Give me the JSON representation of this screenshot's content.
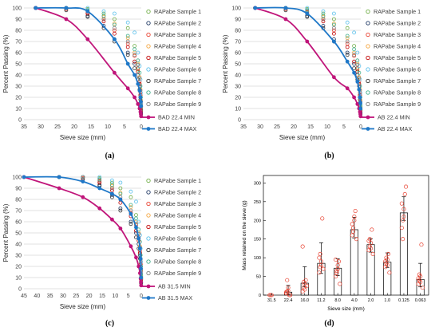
{
  "panels": [
    {
      "label": "(a)",
      "chart_data": {
        "type": "scatter",
        "xlabel": "Sieve size (mm)",
        "ylabel": "Percent Passing (%)",
        "x_ticks": [
          35,
          30,
          25,
          20,
          15,
          10,
          5,
          0
        ],
        "y_ticks": [
          0,
          10,
          20,
          30,
          40,
          50,
          60,
          70,
          80,
          90,
          100
        ],
        "xlim": [
          35,
          0
        ],
        "ylim": [
          0,
          100
        ],
        "grid": "horizontal",
        "legend_position": "right",
        "sieve_sizes": [
          31.5,
          22.4,
          16,
          11.2,
          8,
          4,
          2,
          1,
          0.5,
          0.25,
          0.125,
          0.063
        ],
        "envelope": [
          {
            "name": "BAD 22.4 MIN",
            "color": "#c0157a",
            "x": [
              31.5,
              22.4,
              16,
              8,
              4,
              2,
              1,
              0.5,
              0.25,
              0.125,
              0.063
            ],
            "y": [
              100,
              90,
              72,
              42,
              28,
              20,
              14,
              10,
              7,
              5,
              3
            ]
          },
          {
            "name": "BAD 22.4 MAX",
            "color": "#1f78c8",
            "x": [
              31.5,
              22.4,
              16,
              8,
              4,
              2,
              1,
              0.5,
              0.25,
              0.125,
              0.063
            ],
            "y": [
              100,
              100,
              97,
              72,
              50,
              40,
              32,
              26,
              20,
              16,
              12
            ]
          }
        ],
        "samples": [
          {
            "name": "RAPabe Sample 1",
            "color": "#70ad47",
            "y": [
              100,
              100,
              99,
              95,
              90,
              82,
              66,
              45,
              32,
              22,
              13,
              9
            ]
          },
          {
            "name": "RAPabe Sample 2",
            "color": "#1f3864",
            "y": [
              100,
              100,
              93,
              84,
              72,
              60,
              50,
              40,
              30,
              20,
              10,
              6
            ]
          },
          {
            "name": "RAPabe Sample 3",
            "color": "#e8402f",
            "y": [
              100,
              99,
              96,
              90,
              80,
              68,
              57,
              46,
              34,
              24,
              16,
              10
            ]
          },
          {
            "name": "RAPabe Sample 4",
            "color": "#f4a640",
            "y": [
              100,
              100,
              97,
              92,
              86,
              73,
              60,
              50,
              38,
              27,
              17,
              11
            ]
          },
          {
            "name": "RAPabe Sample 5",
            "color": "#c00000",
            "y": [
              100,
              100,
              95,
              88,
              77,
              65,
              52,
              43,
              32,
              22,
              14,
              8
            ]
          },
          {
            "name": "RAPabe Sample 6",
            "color": "#5bc0eb",
            "y": [
              100,
              100,
              100,
              97,
              95,
              87,
              78,
              60,
              48,
              36,
              24,
              14
            ]
          },
          {
            "name": "RAPabe Sample 7",
            "color": "#2f2f2f",
            "y": [
              100,
              98,
              92,
              82,
              70,
              58,
              46,
              36,
              27,
              18,
              9,
              5
            ]
          },
          {
            "name": "RAPabe Sample 8",
            "color": "#3fae8c",
            "y": [
              100,
              100,
              98,
              93,
              85,
              75,
              63,
              53,
              42,
              30,
              20,
              12
            ]
          },
          {
            "name": "RAPabe Sample 9",
            "color": "#7f7f7f",
            "y": [
              100,
              100,
              97,
              90,
              82,
              70,
              58,
              49,
              37,
              26,
              16,
              9
            ]
          }
        ]
      }
    },
    {
      "label": "(b)",
      "chart_data": {
        "type": "scatter",
        "xlabel": "Sieve size (mm)",
        "ylabel": "Percent Passing (%)",
        "x_ticks": [
          35,
          30,
          25,
          20,
          15,
          10,
          5,
          0
        ],
        "y_ticks": [
          0,
          10,
          20,
          30,
          40,
          50,
          60,
          70,
          80,
          90,
          100
        ],
        "xlim": [
          35,
          0
        ],
        "ylim": [
          0,
          100
        ],
        "grid": "horizontal",
        "legend_position": "right",
        "sieve_sizes": [
          31.5,
          22.4,
          16,
          11.2,
          8,
          4,
          2,
          1,
          0.5,
          0.25,
          0.125,
          0.063
        ],
        "envelope": [
          {
            "name": "AB 22.4 MIN",
            "color": "#c0157a",
            "x": [
              31.5,
              22.4,
              16,
              8,
              4,
              2,
              1,
              0.5,
              0.25,
              0.125,
              0.063
            ],
            "y": [
              100,
              90,
              70,
              38,
              28,
              20,
              14,
              10,
              7,
              5,
              3
            ]
          },
          {
            "name": "AB 22.4 MAX",
            "color": "#1f78c8",
            "x": [
              31.5,
              22.4,
              16,
              8,
              4,
              2,
              1,
              0.5,
              0.25,
              0.125,
              0.063
            ],
            "y": [
              100,
              100,
              95,
              70,
              52,
              42,
              34,
              27,
              20,
              15,
              10
            ]
          }
        ],
        "samples": [
          {
            "name": "RAPabe Sample 1",
            "color": "#70ad47",
            "y": [
              100,
              100,
              99,
              95,
              90,
              82,
              66,
              45,
              32,
              22,
              13,
              9
            ]
          },
          {
            "name": "RAPabe Sample 2",
            "color": "#1f3864",
            "y": [
              100,
              100,
              93,
              84,
              72,
              60,
              50,
              40,
              30,
              20,
              10,
              6
            ]
          },
          {
            "name": "RAPabe Sample 3",
            "color": "#e8402f",
            "y": [
              100,
              99,
              96,
              90,
              80,
              68,
              57,
              46,
              34,
              24,
              16,
              10
            ]
          },
          {
            "name": "RAPabe Sample 4",
            "color": "#f4a640",
            "y": [
              100,
              100,
              97,
              92,
              86,
              73,
              60,
              50,
              38,
              27,
              17,
              11
            ]
          },
          {
            "name": "RAPabe Sample 5",
            "color": "#c00000",
            "y": [
              100,
              100,
              95,
              88,
              77,
              65,
              52,
              43,
              32,
              22,
              14,
              8
            ]
          },
          {
            "name": "RAPabe Sample 6",
            "color": "#5bc0eb",
            "y": [
              100,
              100,
              100,
              97,
              95,
              87,
              78,
              60,
              48,
              36,
              24,
              14
            ]
          },
          {
            "name": "RAPabe Sample 7",
            "color": "#2f2f2f",
            "y": [
              100,
              98,
              92,
              82,
              70,
              58,
              46,
              36,
              27,
              18,
              9,
              5
            ]
          },
          {
            "name": "RAPabe Sample 8",
            "color": "#3fae8c",
            "y": [
              100,
              100,
              98,
              93,
              85,
              75,
              63,
              53,
              42,
              30,
              20,
              12
            ]
          },
          {
            "name": "RAPabe Sample 9",
            "color": "#7f7f7f",
            "y": [
              100,
              100,
              97,
              90,
              82,
              70,
              58,
              49,
              37,
              26,
              16,
              9
            ]
          }
        ]
      }
    },
    {
      "label": "(c)",
      "chart_data": {
        "type": "scatter",
        "xlabel": "Sieve size (mm)",
        "ylabel": "Percent Passing (%)",
        "x_ticks": [
          45,
          40,
          35,
          30,
          25,
          20,
          15,
          10,
          5,
          0
        ],
        "y_ticks": [
          0,
          10,
          20,
          30,
          40,
          50,
          60,
          70,
          80,
          90,
          100
        ],
        "xlim": [
          45,
          0
        ],
        "ylim": [
          0,
          100
        ],
        "grid": "horizontal",
        "legend_position": "right",
        "sieve_sizes": [
          31.5,
          22.4,
          16,
          11.2,
          8,
          4,
          2,
          1,
          0.5,
          0.25,
          0.125,
          0.063
        ],
        "envelope": [
          {
            "name": "AB 31.5 MIN",
            "color": "#c0157a",
            "x": [
              45,
              31.5,
              22.4,
              16,
              11.2,
              8,
              4,
              2,
              1,
              0.5,
              0.25,
              0.125,
              0.063
            ],
            "y": [
              100,
              90,
              82,
              72,
              62,
              54,
              38,
              28,
              20,
              14,
              9,
              6,
              3
            ]
          },
          {
            "name": "AB 31.5 MAX",
            "color": "#1f78c8",
            "x": [
              45,
              31.5,
              22.4,
              16,
              11.2,
              8,
              4,
              2,
              1,
              0.5,
              0.25,
              0.125,
              0.063
            ],
            "y": [
              100,
              100,
              96,
              90,
              85,
              80,
              67,
              55,
              45,
              36,
              27,
              18,
              10
            ]
          }
        ],
        "samples": [
          {
            "name": "RAPabe Sample 1",
            "color": "#70ad47",
            "y": [
              100,
              100,
              99,
              95,
              90,
              82,
              66,
              45,
              32,
              22,
              13,
              9
            ]
          },
          {
            "name": "RAPabe Sample 2",
            "color": "#1f3864",
            "y": [
              100,
              100,
              93,
              84,
              72,
              60,
              50,
              40,
              30,
              20,
              10,
              6
            ]
          },
          {
            "name": "RAPabe Sample 3",
            "color": "#e8402f",
            "y": [
              100,
              99,
              96,
              90,
              80,
              68,
              57,
              46,
              34,
              24,
              16,
              10
            ]
          },
          {
            "name": "RAPabe Sample 4",
            "color": "#f4a640",
            "y": [
              100,
              100,
              97,
              92,
              86,
              73,
              60,
              50,
              38,
              27,
              17,
              11
            ]
          },
          {
            "name": "RAPabe Sample 5",
            "color": "#c00000",
            "y": [
              100,
              100,
              95,
              88,
              77,
              65,
              52,
              43,
              32,
              22,
              14,
              8
            ]
          },
          {
            "name": "RAPabe Sample 6",
            "color": "#5bc0eb",
            "y": [
              100,
              100,
              100,
              97,
              95,
              87,
              78,
              60,
              48,
              36,
              24,
              14
            ]
          },
          {
            "name": "RAPabe Sample 7",
            "color": "#2f2f2f",
            "y": [
              100,
              98,
              92,
              82,
              70,
              58,
              46,
              36,
              27,
              18,
              9,
              5
            ]
          },
          {
            "name": "RAPabe Sample 8",
            "color": "#3fae8c",
            "y": [
              100,
              100,
              98,
              93,
              85,
              75,
              63,
              53,
              42,
              30,
              20,
              12
            ]
          },
          {
            "name": "RAPabe Sample 9",
            "color": "#7f7f7f",
            "y": [
              100,
              100,
              97,
              90,
              82,
              70,
              58,
              49,
              37,
              26,
              16,
              9
            ]
          }
        ]
      }
    },
    {
      "label": "(d)",
      "chart_data": {
        "type": "bar",
        "xlabel": "Sieve size (mm)",
        "ylabel": "Mass retained on the sieve (g)",
        "categories": [
          "31.5",
          "22.4",
          "16.0",
          "11.2",
          "8.0",
          "4.0",
          "2.0",
          "1.0",
          "0.125",
          "0.063"
        ],
        "y_ticks": [
          0,
          50,
          100,
          150,
          200,
          250,
          300
        ],
        "ylim": [
          0,
          320
        ],
        "bar_fill": "#ffffff",
        "bar_stroke": "#000000",
        "point_color": "#e8402f",
        "values": [
          0,
          8,
          32,
          85,
          72,
          175,
          135,
          88,
          220,
          42
        ],
        "error": [
          [
            0,
            0
          ],
          [
            7,
            18
          ],
          [
            10,
            44
          ],
          [
            27,
            55
          ],
          [
            20,
            25
          ],
          [
            22,
            33
          ],
          [
            20,
            16
          ],
          [
            14,
            25
          ],
          [
            20,
            43
          ],
          [
            20,
            43
          ]
        ],
        "points": [
          [
            0,
            0,
            0
          ],
          [
            5,
            10,
            20,
            0,
            0,
            8,
            40,
            12
          ],
          [
            10,
            20,
            30,
            40,
            25,
            130,
            35,
            15
          ],
          [
            60,
            75,
            90,
            205,
            70,
            100,
            110,
            80
          ],
          [
            50,
            65,
            80,
            90,
            30,
            95,
            60,
            70
          ],
          [
            160,
            180,
            200,
            225,
            150,
            190,
            170,
            210
          ],
          [
            120,
            130,
            140,
            175,
            110,
            145,
            150,
            125
          ],
          [
            75,
            85,
            95,
            110,
            60,
            90,
            100,
            80
          ],
          [
            180,
            200,
            230,
            270,
            290,
            245,
            150,
            210
          ],
          [
            30,
            40,
            50,
            135,
            20,
            45,
            55,
            35
          ]
        ]
      }
    }
  ]
}
